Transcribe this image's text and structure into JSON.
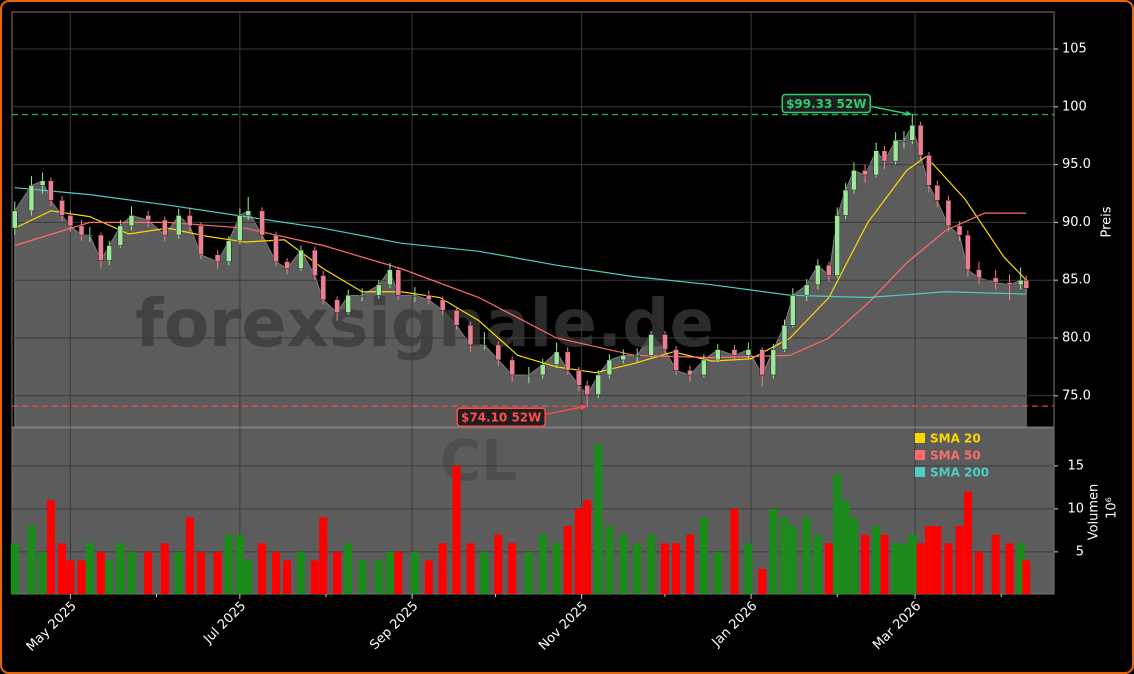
{
  "chart_data": {
    "type": "candlestick",
    "watermark": "forexsignale.de",
    "symbol": "CL",
    "y_label": "Preis",
    "x": [
      "2025-04-11",
      "2025-04-17",
      "2025-04-21",
      "2025-04-24",
      "2025-04-28",
      "2025-05-01",
      "2025-05-05",
      "2025-05-08",
      "2025-05-12",
      "2025-05-15",
      "2025-05-19",
      "2025-05-23",
      "2025-05-29",
      "2025-06-04",
      "2025-06-09",
      "2025-06-13",
      "2025-06-17",
      "2025-06-23",
      "2025-06-27",
      "2025-07-01",
      "2025-07-04",
      "2025-07-09",
      "2025-07-14",
      "2025-07-18",
      "2025-07-23",
      "2025-07-28",
      "2025-07-31",
      "2025-08-05",
      "2025-08-09",
      "2025-08-14",
      "2025-08-20",
      "2025-08-24",
      "2025-08-27",
      "2025-09-02",
      "2025-09-07",
      "2025-09-12",
      "2025-09-17",
      "2025-09-22",
      "2025-09-27",
      "2025-10-02",
      "2025-10-07",
      "2025-10-13",
      "2025-10-18",
      "2025-10-23",
      "2025-10-27",
      "2025-10-31",
      "2025-11-03",
      "2025-11-07",
      "2025-11-11",
      "2025-11-16",
      "2025-11-21",
      "2025-11-26",
      "2025-12-01",
      "2025-12-05",
      "2025-12-10",
      "2025-12-15",
      "2025-12-20",
      "2025-12-26",
      "2025-12-31",
      "2026-01-05",
      "2026-01-09",
      "2026-01-13",
      "2026-01-16",
      "2026-01-21",
      "2026-01-25",
      "2026-01-29",
      "2026-02-01",
      "2026-02-04",
      "2026-02-07",
      "2026-02-11",
      "2026-02-15",
      "2026-02-18",
      "2026-02-22",
      "2026-02-25",
      "2026-02-28",
      "2026-03-03",
      "2026-03-06",
      "2026-03-09",
      "2026-03-13",
      "2026-03-17",
      "2026-03-20",
      "2026-03-24",
      "2026-03-30",
      "2026-04-04",
      "2026-04-08",
      "2026-04-10"
    ],
    "open": [
      89.5,
      91.0,
      93.2,
      93.6,
      91.9,
      90.6,
      89.7,
      88.9,
      88.9,
      86.7,
      88.0,
      89.7,
      90.6,
      90.2,
      88.9,
      90.6,
      89.7,
      87.2,
      86.6,
      88.4,
      90.6,
      91.0,
      88.9,
      86.6,
      86.0,
      87.6,
      85.4,
      83.3,
      82.2,
      83.7,
      83.7,
      84.6,
      85.9,
      83.7,
      83.7,
      83.3,
      82.4,
      81.1,
      79.4,
      79.4,
      78.1,
      76.8,
      76.8,
      77.7,
      78.8,
      77.2,
      75.9,
      75.1,
      76.8,
      78.1,
      78.5,
      78.5,
      80.3,
      79.0,
      77.2,
      76.8,
      78.1,
      79.0,
      78.5,
      79.0,
      76.8,
      79.0,
      81.1,
      83.7,
      84.6,
      86.3,
      85.4,
      90.6,
      92.8,
      94.5,
      94.1,
      96.2,
      95.3,
      97.1,
      97.1,
      98.4,
      95.8,
      93.2,
      91.9,
      89.7,
      88.9,
      85.9,
      85.2,
      84.8,
      84.6,
      85.0
    ],
    "high": [
      91.8,
      94.0,
      94.3,
      93.9,
      92.3,
      91.0,
      90.2,
      89.6,
      89.1,
      88.4,
      90.2,
      91.4,
      91.0,
      90.5,
      91.2,
      91.3,
      90.0,
      87.6,
      88.8,
      91.2,
      92.2,
      91.3,
      89.2,
      86.9,
      88.0,
      87.9,
      85.8,
      83.6,
      84.2,
      84.3,
      85.0,
      86.5,
      86.1,
      84.4,
      84.1,
      83.6,
      82.7,
      81.4,
      80.5,
      79.7,
      78.4,
      77.5,
      78.2,
      79.6,
      79.2,
      77.5,
      76.3,
      77.2,
      78.6,
      79.0,
      79.1,
      80.6,
      80.6,
      79.3,
      77.6,
      78.6,
      79.5,
      79.4,
      79.6,
      79.2,
      79.5,
      81.6,
      84.3,
      85.1,
      86.8,
      86.6,
      91.3,
      93.4,
      95.2,
      95.0,
      96.9,
      96.6,
      97.8,
      97.9,
      99.33,
      98.7,
      96.1,
      93.6,
      92.3,
      90.1,
      89.3,
      86.6,
      85.9,
      85.5,
      86.1,
      85.4
    ],
    "low": [
      88.9,
      90.6,
      92.5,
      91.4,
      90.1,
      89.2,
      88.4,
      88.3,
      86.0,
      86.3,
      87.8,
      89.3,
      89.6,
      88.4,
      88.6,
      89.2,
      86.8,
      86.0,
      86.3,
      88.1,
      90.2,
      88.5,
      86.2,
      85.5,
      85.8,
      85.0,
      82.9,
      81.5,
      82.0,
      83.2,
      83.4,
      84.3,
      83.3,
      83.1,
      82.9,
      82.0,
      80.7,
      78.8,
      79.0,
      77.6,
      76.2,
      76.1,
      76.5,
      77.4,
      76.8,
      75.4,
      74.1,
      74.8,
      76.5,
      77.8,
      77.9,
      78.3,
      78.6,
      76.8,
      76.2,
      76.6,
      77.9,
      78.0,
      78.2,
      75.8,
      76.5,
      78.8,
      80.9,
      83.2,
      84.2,
      84.9,
      85.2,
      90.3,
      92.5,
      93.4,
      93.9,
      94.6,
      95.0,
      96.4,
      96.8,
      95.3,
      92.6,
      91.3,
      89.2,
      88.4,
      85.3,
      84.7,
      84.2,
      83.3,
      84.2,
      83.9
    ],
    "close": [
      91.0,
      93.2,
      93.6,
      91.9,
      90.6,
      89.7,
      88.9,
      88.9,
      86.7,
      88.0,
      89.7,
      90.6,
      90.2,
      88.9,
      90.6,
      89.7,
      87.2,
      86.6,
      88.4,
      90.6,
      91.0,
      88.9,
      86.6,
      86.0,
      87.6,
      85.4,
      83.3,
      82.2,
      83.7,
      83.7,
      84.6,
      85.9,
      83.7,
      83.7,
      83.3,
      82.4,
      81.1,
      79.4,
      79.4,
      78.1,
      76.8,
      76.8,
      77.7,
      78.8,
      77.2,
      75.9,
      75.1,
      76.8,
      78.1,
      78.5,
      78.5,
      80.3,
      79.0,
      77.2,
      76.8,
      78.1,
      79.0,
      78.5,
      79.0,
      76.8,
      79.0,
      81.1,
      83.7,
      84.6,
      86.3,
      85.4,
      90.6,
      92.8,
      94.5,
      94.1,
      96.2,
      95.3,
      97.1,
      97.1,
      98.4,
      95.8,
      93.2,
      91.9,
      89.7,
      88.9,
      85.9,
      85.2,
      84.8,
      84.6,
      85.0,
      84.3
    ],
    "volume": [
      6,
      8,
      5,
      11,
      6,
      4,
      4,
      6,
      5,
      4,
      6,
      5,
      5,
      6,
      5,
      9,
      5,
      5,
      7,
      7,
      4,
      6,
      5,
      4,
      5,
      4,
      9,
      5,
      6,
      4,
      4,
      5,
      5,
      5,
      4,
      6,
      15,
      6,
      5,
      7,
      6,
      5,
      7,
      6,
      8,
      10,
      11,
      17.5,
      8,
      7,
      6,
      7,
      6,
      6,
      7,
      9,
      5,
      10,
      6,
      3,
      10,
      9,
      8,
      9,
      7,
      6,
      14,
      11,
      9,
      7,
      8,
      7,
      6,
      6,
      7,
      6,
      8,
      8,
      6,
      8,
      12,
      5,
      7,
      6,
      6,
      4
    ],
    "candle_colors": {
      "up": "#9be89b",
      "down": "#ec7f8f"
    },
    "volume_colors": {
      "up": "#1a8c1a",
      "down": "#ff0000"
    },
    "area_color": "#5c5c5c",
    "xlim": [
      "2025-04-10",
      "2026-04-20"
    ],
    "xticks": [
      {
        "value": "2025-05-01",
        "label": "May 2025"
      },
      {
        "value": "2025-07-01",
        "label": "Jul 2025"
      },
      {
        "value": "2025-09-01",
        "label": "Sep 2025"
      },
      {
        "value": "2025-11-01",
        "label": "Nov 2025"
      },
      {
        "value": "2026-01-01",
        "label": "Jan 2026"
      },
      {
        "value": "2026-03-01",
        "label": "Mar 2026"
      }
    ],
    "xticks_minor": [
      "2025-06-01",
      "2025-08-01",
      "2025-10-01",
      "2025-12-01",
      "2026-02-01",
      "2026-04-01"
    ],
    "ylim": [
      72.3,
      108.2
    ],
    "yticks": [
      {
        "value": 75,
        "label": "75.0"
      },
      {
        "value": 80,
        "label": "80.0"
      },
      {
        "value": 85,
        "label": "85.0"
      },
      {
        "value": 90,
        "label": "90.0"
      },
      {
        "value": 95,
        "label": "95.0"
      },
      100,
      105
    ],
    "grid": true,
    "sma": [
      {
        "name": "SMA 20",
        "color": "#ffd700",
        "x": [
          "2025-04-11",
          "2025-04-24",
          "2025-05-08",
          "2025-05-22",
          "2025-06-05",
          "2025-06-19",
          "2025-07-03",
          "2025-07-17",
          "2025-07-31",
          "2025-08-14",
          "2025-08-28",
          "2025-09-11",
          "2025-09-25",
          "2025-10-09",
          "2025-10-23",
          "2025-11-06",
          "2025-11-20",
          "2025-12-04",
          "2025-12-18",
          "2026-01-01",
          "2026-01-15",
          "2026-01-29",
          "2026-02-12",
          "2026-02-26",
          "2026-03-05",
          "2026-03-19",
          "2026-04-02",
          "2026-04-10"
        ],
        "values": [
          89.5,
          91.0,
          90.5,
          89.0,
          89.5,
          88.8,
          88.3,
          88.5,
          86.0,
          84.0,
          84.0,
          83.5,
          81.5,
          78.5,
          77.5,
          77.0,
          77.8,
          78.8,
          78.0,
          78.2,
          80.0,
          83.5,
          90.0,
          94.5,
          95.7,
          92.0,
          87.0,
          85.0
        ]
      },
      {
        "name": "SMA 50",
        "color": "#ff6b6b",
        "x": [
          "2025-04-11",
          "2025-05-08",
          "2025-06-05",
          "2025-07-03",
          "2025-07-31",
          "2025-08-28",
          "2025-09-25",
          "2025-10-23",
          "2025-11-20",
          "2025-12-18",
          "2026-01-15",
          "2026-01-29",
          "2026-02-12",
          "2026-02-26",
          "2026-03-12",
          "2026-03-26",
          "2026-04-10"
        ],
        "values": [
          88.0,
          90.0,
          90.0,
          89.5,
          88.0,
          86.0,
          83.5,
          80.0,
          78.5,
          78.3,
          78.5,
          80.0,
          83.0,
          86.5,
          89.3,
          90.8,
          90.8
        ]
      },
      {
        "name": "SMA 200",
        "color": "#4ecdc4",
        "x": [
          "2025-04-11",
          "2025-05-08",
          "2025-06-05",
          "2025-07-03",
          "2025-07-31",
          "2025-08-28",
          "2025-09-25",
          "2025-10-23",
          "2025-11-20",
          "2025-12-18",
          "2026-01-15",
          "2026-02-12",
          "2026-03-12",
          "2026-04-10"
        ],
        "values": [
          93.0,
          92.4,
          91.5,
          90.5,
          89.5,
          88.2,
          87.5,
          86.3,
          85.3,
          84.6,
          83.7,
          83.5,
          84.0,
          83.8
        ]
      }
    ],
    "annotations": [
      {
        "text": "$99.33 52W",
        "value": 99.33,
        "date": "2026-02-28",
        "color": "#2ecc71"
      },
      {
        "text": "$74.10 52W",
        "value": 74.1,
        "date": "2025-11-03",
        "color": "#ff4d4d"
      }
    ],
    "volume_panel": {
      "y_label": "Volumen",
      "unit_label": "10⁶",
      "ylim": [
        0.1,
        19.4
      ],
      "yticks": [
        5,
        10,
        15
      ]
    }
  }
}
